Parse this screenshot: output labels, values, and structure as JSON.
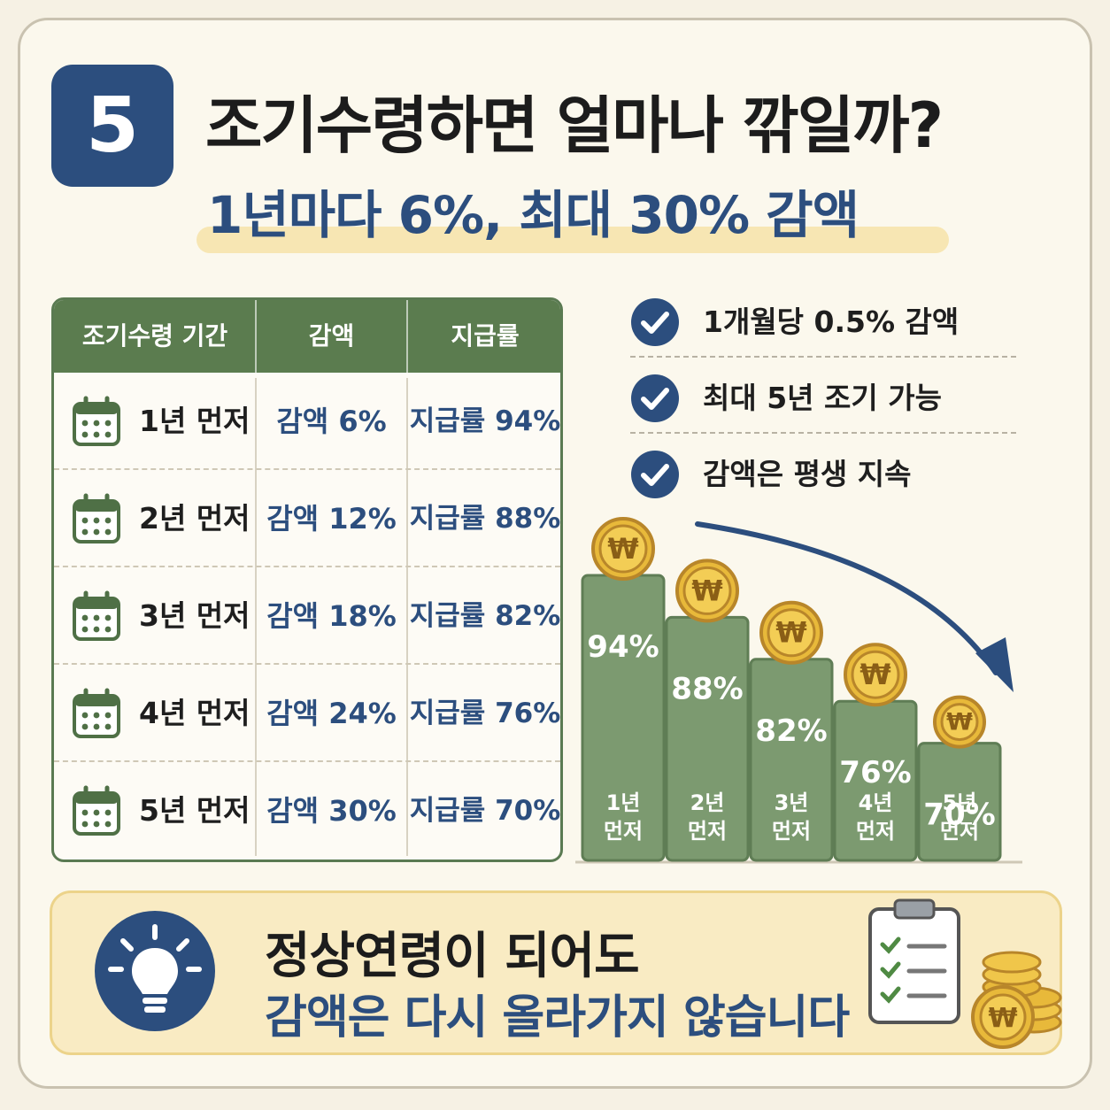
{
  "header": {
    "badge": "5",
    "title": "조기수령하면 얼마나 깎일까?",
    "subtitle": "1년마다 6%, 최대 30% 감액"
  },
  "table": {
    "headers": [
      "조기수령 기간",
      "감액",
      "지급률"
    ],
    "rows": [
      {
        "period": "1년 먼저",
        "cut": "감액 6%",
        "rate": "지급률 94%"
      },
      {
        "period": "2년 먼저",
        "cut": "감액 12%",
        "rate": "지급률 88%"
      },
      {
        "period": "3년 먼저",
        "cut": "감액 18%",
        "rate": "지급률 82%"
      },
      {
        "period": "4년 먼저",
        "cut": "감액 24%",
        "rate": "지급률 76%"
      },
      {
        "period": "5년 먼저",
        "cut": "감액 30%",
        "rate": "지급률 70%"
      }
    ]
  },
  "checklist": [
    "1개월당 0.5% 감액",
    "최대 5년 조기 가능",
    "감액은 평생 지속"
  ],
  "chart_data": {
    "type": "bar",
    "categories": [
      [
        "1년",
        "먼저"
      ],
      [
        "2년",
        "먼저"
      ],
      [
        "3년",
        "먼저"
      ],
      [
        "4년",
        "먼저"
      ],
      [
        "5년",
        "먼저"
      ]
    ],
    "values": [
      94,
      88,
      82,
      76,
      70
    ],
    "value_labels": [
      "94%",
      "88%",
      "82%",
      "76%",
      "70%"
    ],
    "unit": "%",
    "coin_symbol": "₩",
    "trend_arrow": "down",
    "ylim": [
      0,
      100
    ],
    "grid": false,
    "colors": {
      "bar": "#7c9a70",
      "bar_stroke": "#5f7d55",
      "coin": "#e8b93a",
      "arrow": "#2c4e7e"
    }
  },
  "note": {
    "line1": "정상연령이 되어도",
    "line2": "감액은 다시 올라가지 않습니다"
  },
  "icons": {
    "badge": "number-badge",
    "table_rows": "calendar-icon",
    "checklist": "check-circle-icon",
    "note_left": "lightbulb-icon",
    "note_right": "clipboard-coins-icon"
  },
  "colors": {
    "navy": "#2c4e7e",
    "green": "#5b7c4f",
    "cream": "#fbf8ed",
    "note_bg": "#f9ebc3",
    "gold": "#e8b93a"
  }
}
